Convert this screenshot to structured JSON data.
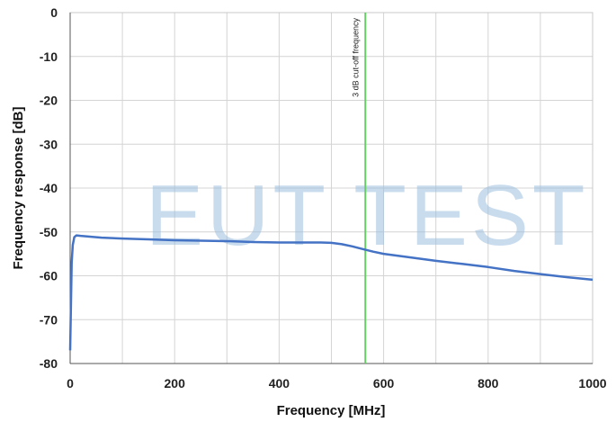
{
  "chart_data": {
    "type": "line",
    "title": "",
    "xlabel": "Frequency [MHz]",
    "ylabel": "Frequency response [dB]",
    "xlim": [
      0,
      1000
    ],
    "ylim": [
      -80,
      0
    ],
    "xticks": [
      0,
      200,
      400,
      600,
      800,
      1000
    ],
    "yticks": [
      0,
      -10,
      -20,
      -30,
      -40,
      -50,
      -60,
      -70,
      -80
    ],
    "grid": true,
    "legend": "none",
    "series": [
      {
        "color": "#4472c4",
        "x": [
          0,
          1,
          2,
          3,
          5,
          8,
          12,
          20,
          40,
          60,
          100,
          150,
          200,
          250,
          300,
          350,
          400,
          450,
          480,
          500,
          520,
          540,
          560,
          580,
          600,
          650,
          700,
          750,
          800,
          850,
          900,
          950,
          1000
        ],
        "y": [
          -77,
          -70,
          -63,
          -57,
          -53,
          -51.2,
          -50.8,
          -50.9,
          -51.1,
          -51.3,
          -51.5,
          -51.7,
          -51.9,
          -52.0,
          -52.1,
          -52.3,
          -52.4,
          -52.4,
          -52.4,
          -52.5,
          -52.8,
          -53.3,
          -53.9,
          -54.5,
          -55.0,
          -55.8,
          -56.6,
          -57.3,
          -58.0,
          -58.9,
          -59.6,
          -60.3,
          -60.9
        ]
      }
    ],
    "annotations": [
      {
        "text": "3 dB  cut-off  frequency",
        "x": 565,
        "color": "#66cc66"
      }
    ]
  },
  "watermark": "EUT TEST"
}
